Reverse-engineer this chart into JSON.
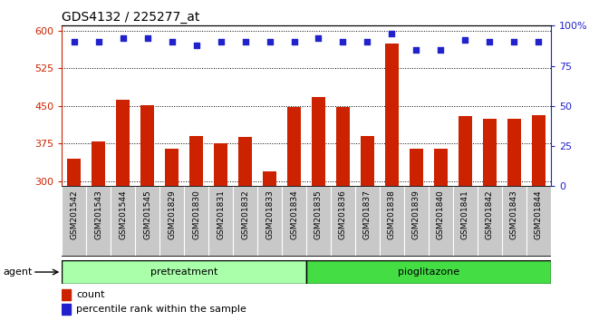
{
  "title": "GDS4132 / 225277_at",
  "samples": [
    "GSM201542",
    "GSM201543",
    "GSM201544",
    "GSM201545",
    "GSM201829",
    "GSM201830",
    "GSM201831",
    "GSM201832",
    "GSM201833",
    "GSM201834",
    "GSM201835",
    "GSM201836",
    "GSM201837",
    "GSM201838",
    "GSM201839",
    "GSM201840",
    "GSM201841",
    "GSM201842",
    "GSM201843",
    "GSM201844"
  ],
  "counts": [
    345,
    380,
    462,
    452,
    365,
    390,
    375,
    388,
    320,
    448,
    468,
    447,
    390,
    575,
    365,
    365,
    430,
    425,
    425,
    432
  ],
  "pct_values": [
    90,
    90,
    92,
    92,
    90,
    88,
    90,
    90,
    90,
    90,
    92,
    90,
    90,
    95,
    85,
    85,
    91,
    90,
    90,
    90
  ],
  "pretreatment_count": 10,
  "pioglitazone_count": 10,
  "ylim_left": [
    290,
    610
  ],
  "ylim_right": [
    0,
    100
  ],
  "yticks_left": [
    300,
    375,
    450,
    525,
    600
  ],
  "yticks_right": [
    0,
    25,
    50,
    75,
    100
  ],
  "bar_color": "#cc2200",
  "dot_color": "#2222cc",
  "pretreatment_color": "#aaffaa",
  "pioglitazone_color": "#44dd44",
  "xtick_bg_color": "#c8c8c8",
  "agent_label": "agent",
  "pretreatment_label": "pretreatment",
  "pioglitazone_label": "pioglitazone",
  "legend_count_label": "count",
  "legend_pct_label": "percentile rank within the sample"
}
